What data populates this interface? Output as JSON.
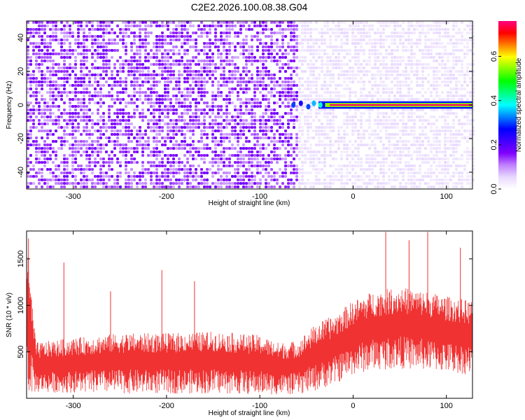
{
  "figure": {
    "title": "C2E2.2026.100.08.38.G04"
  },
  "chart_data": [
    {
      "type": "heatmap",
      "title": "C2E2.2026.100.08.38.G04",
      "xlabel": "Height of straight line (km)",
      "ylabel": "Frequency (Hz)",
      "xlim": [
        -350,
        128
      ],
      "ylim": [
        -50,
        50
      ],
      "x_ticks": [
        -300,
        -200,
        -100,
        0,
        100
      ],
      "y_ticks": [
        -40,
        -20,
        0,
        20,
        40
      ],
      "colorbar": {
        "label": "Normalized spectral amplitude",
        "range": [
          0.0,
          0.76
        ],
        "ticks": [
          0.0,
          0.2,
          0.4,
          0.6
        ],
        "colormap": [
          "#ffffff",
          "#e8d8ff",
          "#c080ff",
          "#8000ff",
          "#4000ff",
          "#0000ff",
          "#0080ff",
          "#00ffff",
          "#00ff80",
          "#00ff00",
          "#80ff00",
          "#ffff00",
          "#ff8000",
          "#ff0000",
          "#ff0080"
        ]
      },
      "background": {
        "note_levels": "regions of amplitude by height",
        "regions": [
          {
            "x_from": -350,
            "x_to": -60,
            "level": 0.1
          },
          {
            "x_from": -60,
            "x_to": 128,
            "level": 0.03
          }
        ]
      },
      "signal": {
        "freq_hz": 0,
        "x_from": -65,
        "x_to": 128,
        "peak": 0.75,
        "onset_points": [
          {
            "x": -64,
            "y": 0,
            "v": 0.3
          },
          {
            "x": -56,
            "y": 1,
            "v": 0.25
          },
          {
            "x": -48,
            "y": -1,
            "v": 0.3
          },
          {
            "x": -42,
            "y": 1,
            "v": 0.35
          },
          {
            "x": -35,
            "y": 0,
            "v": 0.4
          }
        ]
      }
    },
    {
      "type": "line",
      "xlabel": "Height of straight line (km)",
      "ylabel": "SNR (10 * v/v)",
      "xlim": [
        -350,
        128
      ],
      "ylim": [
        0,
        1800
      ],
      "x_ticks": [
        -300,
        -200,
        -100,
        0,
        100
      ],
      "y_ticks": [
        500,
        1000,
        1500
      ],
      "color": "#f03232",
      "envelope": [
        {
          "x": -350,
          "high": 1700,
          "low": 50
        },
        {
          "x": -340,
          "high": 600,
          "low": 60
        },
        {
          "x": -300,
          "high": 650,
          "low": 60
        },
        {
          "x": -250,
          "high": 700,
          "low": 50
        },
        {
          "x": -200,
          "high": 700,
          "low": 50
        },
        {
          "x": -150,
          "high": 720,
          "low": 50
        },
        {
          "x": -100,
          "high": 680,
          "low": 40
        },
        {
          "x": -80,
          "high": 600,
          "low": 40
        },
        {
          "x": -60,
          "high": 620,
          "low": 40
        },
        {
          "x": -40,
          "high": 800,
          "low": 80
        },
        {
          "x": -20,
          "high": 900,
          "low": 150
        },
        {
          "x": 0,
          "high": 1050,
          "low": 250
        },
        {
          "x": 20,
          "high": 1150,
          "low": 300
        },
        {
          "x": 50,
          "high": 1200,
          "low": 320
        },
        {
          "x": 80,
          "high": 1150,
          "low": 300
        },
        {
          "x": 100,
          "high": 1100,
          "low": 280
        },
        {
          "x": 128,
          "high": 1050,
          "low": 250
        }
      ],
      "spikes": [
        {
          "x": -348,
          "y": 1720
        },
        {
          "x": -310,
          "y": 1460
        },
        {
          "x": -260,
          "y": 1150
        },
        {
          "x": -205,
          "y": 1380
        },
        {
          "x": -170,
          "y": 1260
        },
        {
          "x": 35,
          "y": 1790
        },
        {
          "x": 60,
          "y": 1700
        },
        {
          "x": 80,
          "y": 1790
        },
        {
          "x": 115,
          "y": 1620
        }
      ]
    }
  ]
}
